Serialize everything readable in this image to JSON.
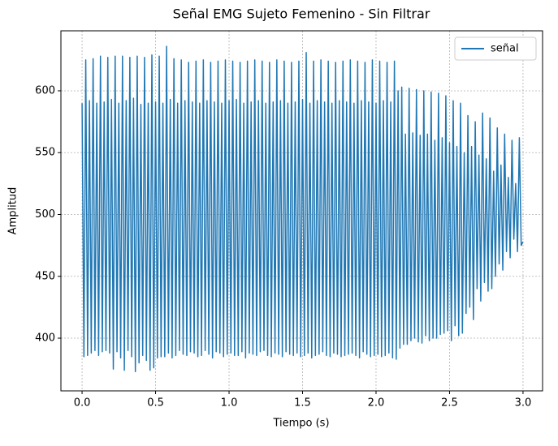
{
  "chart_data": {
    "type": "line",
    "title": "Señal EMG Sujeto Femenino - Sin Filtrar",
    "xlabel": "Tiempo (s)",
    "ylabel": "Amplitud",
    "xlim": [
      -0.144,
      3.133
    ],
    "ylim": [
      357.4,
      648.5
    ],
    "xticks": [
      {
        "value": 0,
        "label": "0.0"
      },
      0.5,
      {
        "value": 1,
        "label": "1.0"
      },
      1.5,
      {
        "value": 2,
        "label": "2.0"
      },
      2.5,
      {
        "value": 3,
        "label": "3.0"
      }
    ],
    "yticks": [
      400,
      450,
      500,
      550,
      600
    ],
    "grid": true,
    "legend": "upper right",
    "x": [
      0,
      0.0125,
      0.025,
      0.0375,
      0.05,
      0.0625,
      0.075,
      0.0875,
      0.1,
      0.1125,
      0.125,
      0.1375,
      0.15,
      0.1625,
      0.175,
      0.1875,
      0.2,
      0.2125,
      0.225,
      0.2375,
      0.25,
      0.2625,
      0.275,
      0.2875,
      0.3,
      0.3125,
      0.325,
      0.3375,
      0.35,
      0.3625,
      0.375,
      0.3875,
      0.4,
      0.4125,
      0.425,
      0.4375,
      0.45,
      0.4625,
      0.475,
      0.4875,
      0.5,
      0.5125,
      0.525,
      0.5375,
      0.55,
      0.5625,
      0.575,
      0.5875,
      0.6,
      0.6125,
      0.625,
      0.6375,
      0.65,
      0.6625,
      0.675,
      0.6875,
      0.7,
      0.7125,
      0.725,
      0.7375,
      0.75,
      0.7625,
      0.775,
      0.7875,
      0.8,
      0.8125,
      0.825,
      0.8375,
      0.85,
      0.8625,
      0.875,
      0.8875,
      0.9,
      0.9125,
      0.925,
      0.9375,
      0.95,
      0.9625,
      0.975,
      0.9875,
      1,
      1.0125,
      1.025,
      1.0375,
      1.05,
      1.0625,
      1.075,
      1.0875,
      1.1,
      1.1125,
      1.125,
      1.1375,
      1.15,
      1.1625,
      1.175,
      1.1875,
      1.2,
      1.2125,
      1.225,
      1.2375,
      1.25,
      1.2625,
      1.275,
      1.2875,
      1.3,
      1.3125,
      1.325,
      1.3375,
      1.35,
      1.3625,
      1.375,
      1.3875,
      1.4,
      1.4125,
      1.425,
      1.4375,
      1.45,
      1.4625,
      1.475,
      1.4875,
      1.5,
      1.5125,
      1.525,
      1.5375,
      1.55,
      1.5625,
      1.575,
      1.5875,
      1.6,
      1.6125,
      1.625,
      1.6375,
      1.65,
      1.6625,
      1.675,
      1.6875,
      1.7,
      1.7125,
      1.725,
      1.7375,
      1.75,
      1.7625,
      1.775,
      1.7875,
      1.8,
      1.8125,
      1.825,
      1.8375,
      1.85,
      1.8625,
      1.875,
      1.8875,
      1.9,
      1.9125,
      1.925,
      1.9375,
      1.95,
      1.9625,
      1.975,
      1.9875,
      2,
      2.0125,
      2.025,
      2.0375,
      2.05,
      2.0625,
      2.075,
      2.0875,
      2.1,
      2.1125,
      2.125,
      2.1375,
      2.15,
      2.1625,
      2.175,
      2.1875,
      2.2,
      2.2125,
      2.225,
      2.2375,
      2.25,
      2.2625,
      2.275,
      2.2875,
      2.3,
      2.3125,
      2.325,
      2.3375,
      2.35,
      2.3625,
      2.375,
      2.3875,
      2.4,
      2.4125,
      2.425,
      2.4375,
      2.45,
      2.4625,
      2.475,
      2.4875,
      2.5,
      2.5125,
      2.525,
      2.5375,
      2.55,
      2.5625,
      2.575,
      2.5875,
      2.6,
      2.6125,
      2.625,
      2.6375,
      2.65,
      2.6625,
      2.675,
      2.6875,
      2.7,
      2.7125,
      2.725,
      2.7375,
      2.75,
      2.7625,
      2.775,
      2.7875,
      2.8,
      2.8125,
      2.825,
      2.8375,
      2.85,
      2.8625,
      2.875,
      2.8875,
      2.9,
      2.9125,
      2.925,
      2.9375,
      2.95,
      2.9625,
      2.975,
      2.9875,
      3
    ],
    "series": [
      {
        "name": "señal",
        "color": "#1f77b4",
        "values": [
          590,
          385,
          625,
          386,
          592,
          388,
          626,
          390,
          590,
          386,
          628,
          389,
          591,
          390,
          627,
          388,
          593,
          375,
          628,
          389,
          590,
          384,
          628,
          374,
          592,
          390,
          627,
          385,
          594,
          373,
          628,
          380,
          589,
          386,
          627,
          382,
          590,
          374,
          629,
          376,
          591,
          384,
          628,
          385,
          590,
          385,
          636,
          388,
          593,
          384,
          626,
          386,
          590,
          390,
          625,
          387,
          592,
          386,
          623,
          389,
          591,
          388,
          624,
          385,
          590,
          386,
          625,
          390,
          592,
          387,
          623,
          384,
          591,
          389,
          624,
          388,
          590,
          385,
          625,
          387,
          592,
          388,
          624,
          386,
          593,
          386,
          623,
          389,
          590,
          384,
          624,
          388,
          591,
          387,
          625,
          386,
          592,
          389,
          624,
          390,
          590,
          386,
          623,
          385,
          591,
          388,
          625,
          387,
          592,
          385,
          624,
          389,
          590,
          387,
          623,
          386,
          591,
          388,
          624,
          385,
          593,
          386,
          631,
          388,
          590,
          384,
          624,
          386,
          592,
          387,
          625,
          389,
          591,
          386,
          624,
          385,
          590,
          388,
          623,
          387,
          592,
          385,
          624,
          386,
          591,
          387,
          625,
          388,
          590,
          386,
          624,
          384,
          592,
          389,
          623,
          387,
          591,
          385,
          625,
          386,
          590,
          387,
          624,
          385,
          592,
          386,
          623,
          388,
          591,
          384,
          624,
          383,
          600,
          392,
          603,
          395,
          565,
          395,
          602,
          398,
          566,
          400,
          601,
          397,
          564,
          396,
          600,
          402,
          565,
          398,
          599,
          400,
          560,
          400,
          598,
          403,
          562,
          404,
          596,
          406,
          558,
          398,
          592,
          410,
          555,
          402,
          590,
          404,
          550,
          420,
          580,
          425,
          555,
          415,
          575,
          440,
          548,
          430,
          582,
          445,
          545,
          438,
          578,
          440,
          535,
          450,
          570,
          460,
          540,
          455,
          565,
          470,
          530,
          465,
          560,
          480,
          525,
          470,
          562,
          475,
          478
        ]
      }
    ]
  }
}
